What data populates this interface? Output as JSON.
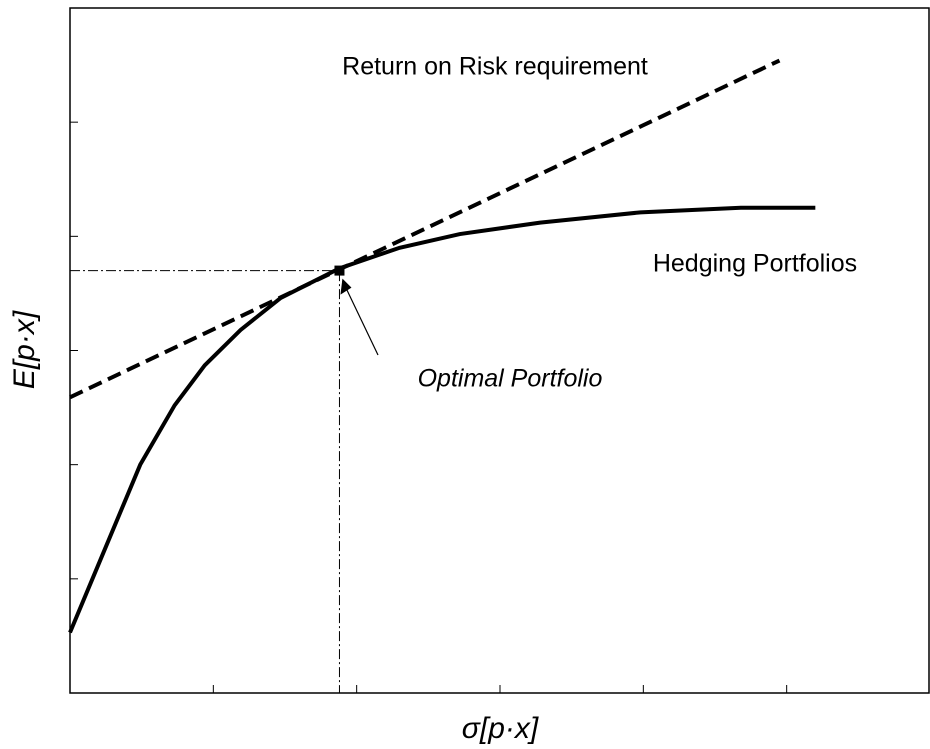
{
  "chart_data": {
    "type": "line",
    "xlabel": "σ[p·x]",
    "ylabel": "E[p·x]",
    "xlim": [
      0,
      6
    ],
    "xticks": [
      1,
      2,
      3,
      4,
      5
    ],
    "ylim": [
      0,
      6
    ],
    "yticks": [
      1,
      2,
      3,
      4,
      5
    ],
    "series": [
      {
        "name": "Hedging Portfolios",
        "color": "#000000",
        "style": "solid",
        "x": [
          0,
          0.21,
          0.49,
          0.73,
          0.94,
          1.19,
          1.47,
          1.88,
          2.3,
          2.72,
          3.28,
          3.98,
          4.68,
          5.2
        ],
        "values": [
          0.53,
          1.16,
          2.0,
          2.52,
          2.87,
          3.18,
          3.46,
          3.72,
          3.9,
          4.02,
          4.12,
          4.21,
          4.25,
          4.25
        ]
      },
      {
        "name": "Return on Risk requirement",
        "color": "#000000",
        "style": "dashed",
        "x": [
          0,
          4.95
        ],
        "values": [
          2.59,
          5.54
        ]
      }
    ],
    "optimal_point": {
      "label": "Optimal Portfolio",
      "x": 1.88,
      "y": 3.7
    }
  }
}
